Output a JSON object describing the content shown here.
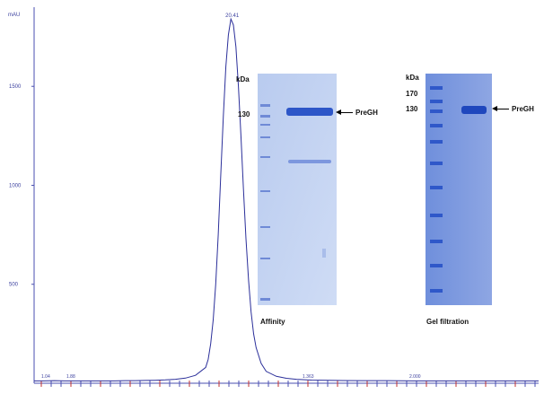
{
  "chart_data": {
    "type": "line",
    "ylabel": "mAU",
    "ylim": [
      0,
      1900
    ],
    "xlim": [
      0,
      100
    ],
    "y_ticks": [
      "500",
      "1000",
      "1500"
    ],
    "peak_label": "20.41",
    "series": [
      {
        "x": [
          0,
          2,
          4,
          6,
          8,
          10,
          12,
          14,
          16,
          18,
          20,
          22,
          24,
          26,
          28,
          30,
          32,
          34,
          34.5,
          35,
          35.5,
          36,
          36.5,
          37,
          37.5,
          38,
          38.5,
          39,
          39.5,
          40,
          40.5,
          41,
          41.5,
          42,
          42.5,
          43,
          43.5,
          44,
          45,
          46,
          48,
          50,
          52,
          55,
          60,
          65,
          70,
          75,
          80,
          85,
          90,
          95,
          100
        ],
        "y": [
          12,
          12,
          13,
          12,
          12,
          12,
          12,
          12,
          12,
          13,
          13,
          14,
          15,
          17,
          20,
          26,
          40,
          80,
          120,
          200,
          320,
          500,
          750,
          1050,
          1350,
          1600,
          1760,
          1840,
          1810,
          1700,
          1500,
          1250,
          980,
          730,
          520,
          360,
          250,
          180,
          100,
          60,
          35,
          25,
          20,
          16,
          14,
          13,
          13,
          12,
          12,
          12,
          12,
          12,
          12
        ]
      }
    ],
    "baseline_labels": [
      "1.04",
      "1.88",
      "1.363",
      "2.000"
    ]
  },
  "gels": [
    {
      "caption": "Affinity",
      "marker_unit": "kDa",
      "marker_labels": [
        "130"
      ],
      "band_label": "PreGH"
    },
    {
      "caption": "Gel filtration",
      "marker_unit": "kDa",
      "marker_labels": [
        "170",
        "130"
      ],
      "band_label": "PreGH"
    }
  ],
  "colors": {
    "trace": "#2b2f9a",
    "axis": "#4a4fb0",
    "tick_label": "#3a3f9e",
    "fraction_marks": "#c23030",
    "gel_light": "#c9d6f2",
    "gel_dark": "#7f9be0",
    "band": "#2d56c8"
  }
}
